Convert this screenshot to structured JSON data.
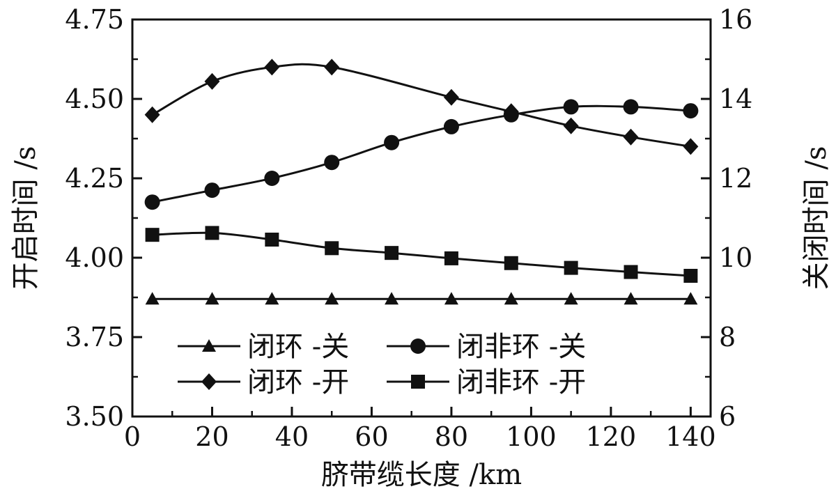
{
  "chart_data": {
    "type": "line",
    "xlabel": "脐带缆长度 /km",
    "ylabel_left": "开启时间 /s",
    "ylabel_right": "关闭时间 /s",
    "xlim": [
      0,
      145
    ],
    "ylim_left": [
      3.5,
      4.75
    ],
    "ylim_right": [
      6,
      16
    ],
    "x_ticks": [
      "0",
      "20",
      "40",
      "60",
      "80",
      "100",
      "120",
      "140"
    ],
    "y_ticks_left": [
      "3.50",
      "3.75",
      "4.00",
      "4.25",
      "4.50",
      "4.75"
    ],
    "y_ticks_right": [
      "6",
      "8",
      "10",
      "12",
      "14",
      "16"
    ],
    "grid": false,
    "legend_position": "lower-center",
    "x": [
      5,
      20,
      35,
      50,
      65,
      80,
      95,
      110,
      125,
      140
    ],
    "series": [
      {
        "name": "闭环 -关",
        "marker": "triangle",
        "axis": "right",
        "values": [
          8.96,
          8.96,
          8.96,
          8.96,
          8.96,
          8.96,
          8.96,
          8.96,
          8.96,
          8.96
        ]
      },
      {
        "name": "闭非环 -关",
        "marker": "circle",
        "axis": "right",
        "values": [
          11.4,
          11.7,
          12.0,
          12.4,
          12.9,
          13.3,
          13.6,
          13.8,
          13.8,
          13.7
        ]
      },
      {
        "name": "闭环 -开",
        "marker": "diamond",
        "axis": "left",
        "values": [
          4.45,
          4.555,
          4.6,
          4.6,
          null,
          4.505,
          4.46,
          4.415,
          4.38,
          4.35
        ]
      },
      {
        "name": "闭非环 -开",
        "marker": "square",
        "axis": "left",
        "values": [
          4.072,
          4.078,
          4.057,
          4.03,
          4.015,
          3.998,
          3.983,
          3.968,
          3.955,
          3.943
        ]
      }
    ]
  },
  "colors": {
    "line": "#111111",
    "background": "#ffffff"
  }
}
